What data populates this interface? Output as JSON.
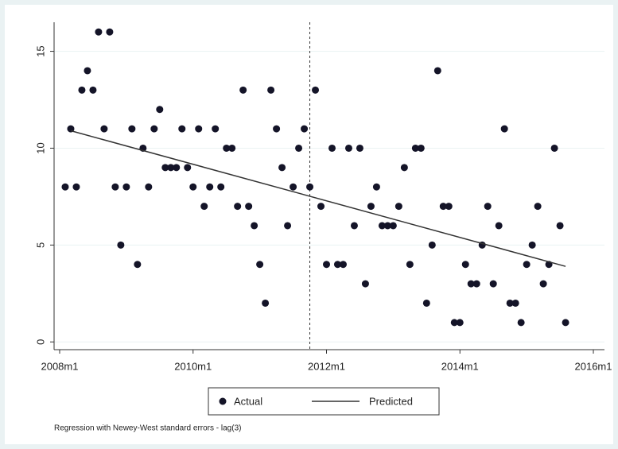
{
  "chart_data": {
    "type": "scatter",
    "note": "Regression with Newey-West standard errors - lag(3)",
    "xlim": [
      575,
      674
    ],
    "ylim": [
      -0.4,
      16.5
    ],
    "xticks": [
      {
        "value": 576,
        "label": "2008m1"
      },
      {
        "value": 600,
        "label": "2010m1"
      },
      {
        "value": 624,
        "label": "2012m1"
      },
      {
        "value": 648,
        "label": "2014m1"
      },
      {
        "value": 672,
        "label": "2016m1"
      }
    ],
    "yticks": [
      0,
      5,
      10,
      15
    ],
    "xline": 621,
    "grid": true,
    "series": [
      {
        "name": "Actual",
        "style": "points",
        "color": "#141428",
        "x": [
          577,
          578,
          579,
          580,
          581,
          582,
          583,
          584,
          585,
          586,
          587,
          588,
          589,
          590,
          591,
          592,
          593,
          594,
          595,
          596,
          597,
          598,
          599,
          600,
          601,
          602,
          603,
          604,
          605,
          606,
          607,
          608,
          609,
          610,
          611,
          612,
          613,
          614,
          615,
          616,
          617,
          618,
          619,
          620,
          621,
          622,
          623,
          624,
          625,
          626,
          627,
          628,
          629,
          630,
          631,
          632,
          633,
          634,
          635,
          636,
          637,
          638,
          639,
          640,
          641,
          642,
          643,
          644,
          645,
          646,
          647,
          648,
          649,
          650,
          651,
          652,
          653,
          654,
          655,
          656,
          657,
          658,
          659,
          660,
          661,
          662,
          663,
          664,
          665,
          666,
          667
        ],
        "values": [
          8,
          11,
          8,
          13,
          14,
          13,
          16,
          11,
          16,
          8,
          5,
          8,
          11,
          4,
          10,
          8,
          11,
          12,
          9,
          9,
          9,
          11,
          9,
          8,
          11,
          7,
          8,
          11,
          8,
          10,
          10,
          7,
          13,
          7,
          6,
          4,
          2,
          13,
          11,
          9,
          6,
          8,
          10,
          11,
          8,
          13,
          7,
          4,
          10,
          4,
          4,
          10,
          6,
          10,
          3,
          7,
          8,
          6,
          6,
          6,
          7,
          9,
          4,
          10,
          10,
          2,
          5,
          14,
          7,
          7,
          1,
          1,
          4,
          3,
          3,
          5,
          7,
          3,
          6,
          11,
          2,
          2,
          1,
          4,
          5,
          7,
          3,
          4,
          10,
          6,
          1
        ]
      },
      {
        "name": "Predicted",
        "style": "line",
        "color": "#333333",
        "x": [
          578,
          667
        ],
        "values": [
          10.9,
          3.9
        ]
      }
    ]
  }
}
